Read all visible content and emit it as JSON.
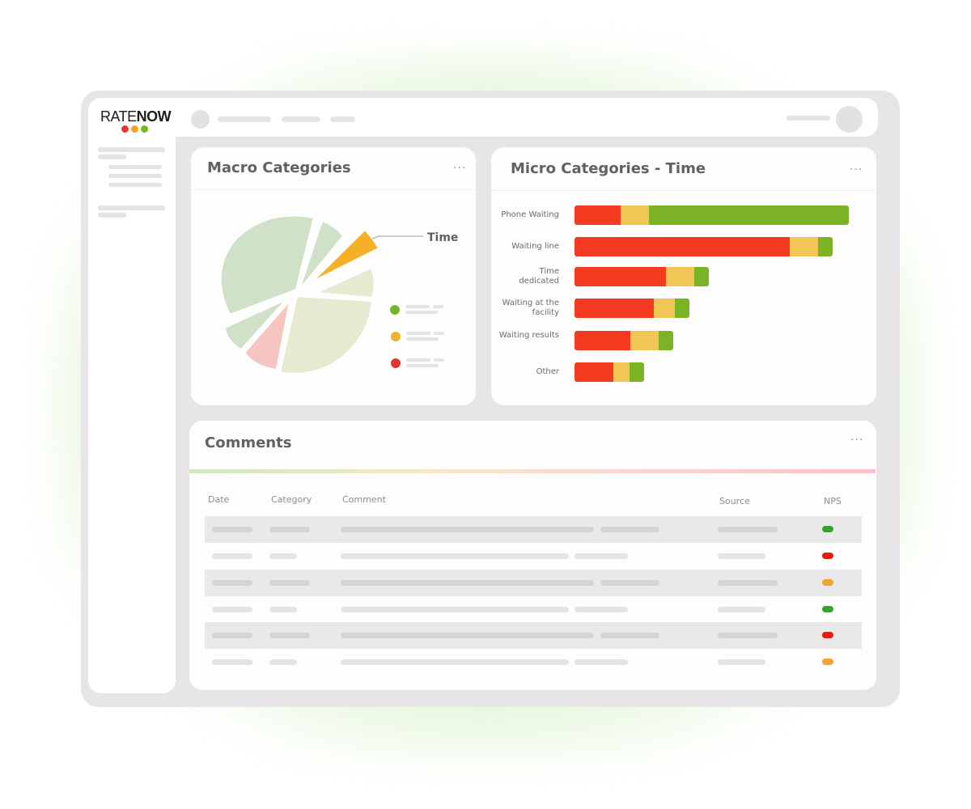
{
  "app": {
    "logo_light": "RATE",
    "logo_bold": "NOW",
    "logo_dot_colors": [
      "#e8362b",
      "#f0a429",
      "#7ab527"
    ]
  },
  "macro": {
    "title": "Macro Categories",
    "menu": "···",
    "callout": "Time",
    "slice_colors": [
      "#cfe1c6",
      "#cfe1c6",
      "#f5b02a",
      "#e5ead0",
      "#e5ead0",
      "#f6c4c1",
      "#cfe1c6"
    ],
    "legend_colors": [
      "#7ab527",
      "#f0b22a",
      "#e0342b"
    ]
  },
  "micro": {
    "title": "Micro Categories - Time",
    "menu": "···",
    "colors": {
      "red": "#f43b22",
      "yellow": "#f2c655",
      "green": "#7cb225"
    }
  },
  "chart_data": {
    "type": "bar",
    "orientation": "horizontal",
    "stacked": true,
    "categories": [
      "Phone Waiting",
      "Waiting line",
      "Time dedicated",
      "Waiting at the facility",
      "Waiting results",
      "Other"
    ],
    "series": [
      {
        "values": [
          57,
          266,
          113,
          98,
          69,
          48
        ]
      },
      {
        "values": [
          35,
          35,
          35,
          26,
          35,
          20
        ]
      },
      {
        "values": [
          247,
          18,
          18,
          18,
          18,
          18
        ]
      }
    ]
  },
  "comments": {
    "title": "Comments",
    "menu": "···",
    "columns": [
      "Date",
      "Category",
      "Comment",
      "Source",
      "NPS"
    ],
    "nps_colors": [
      "#33a52b",
      "#e81a12",
      "#f2a52a",
      "#33a52b",
      "#e81a12",
      "#f2a52a"
    ]
  }
}
